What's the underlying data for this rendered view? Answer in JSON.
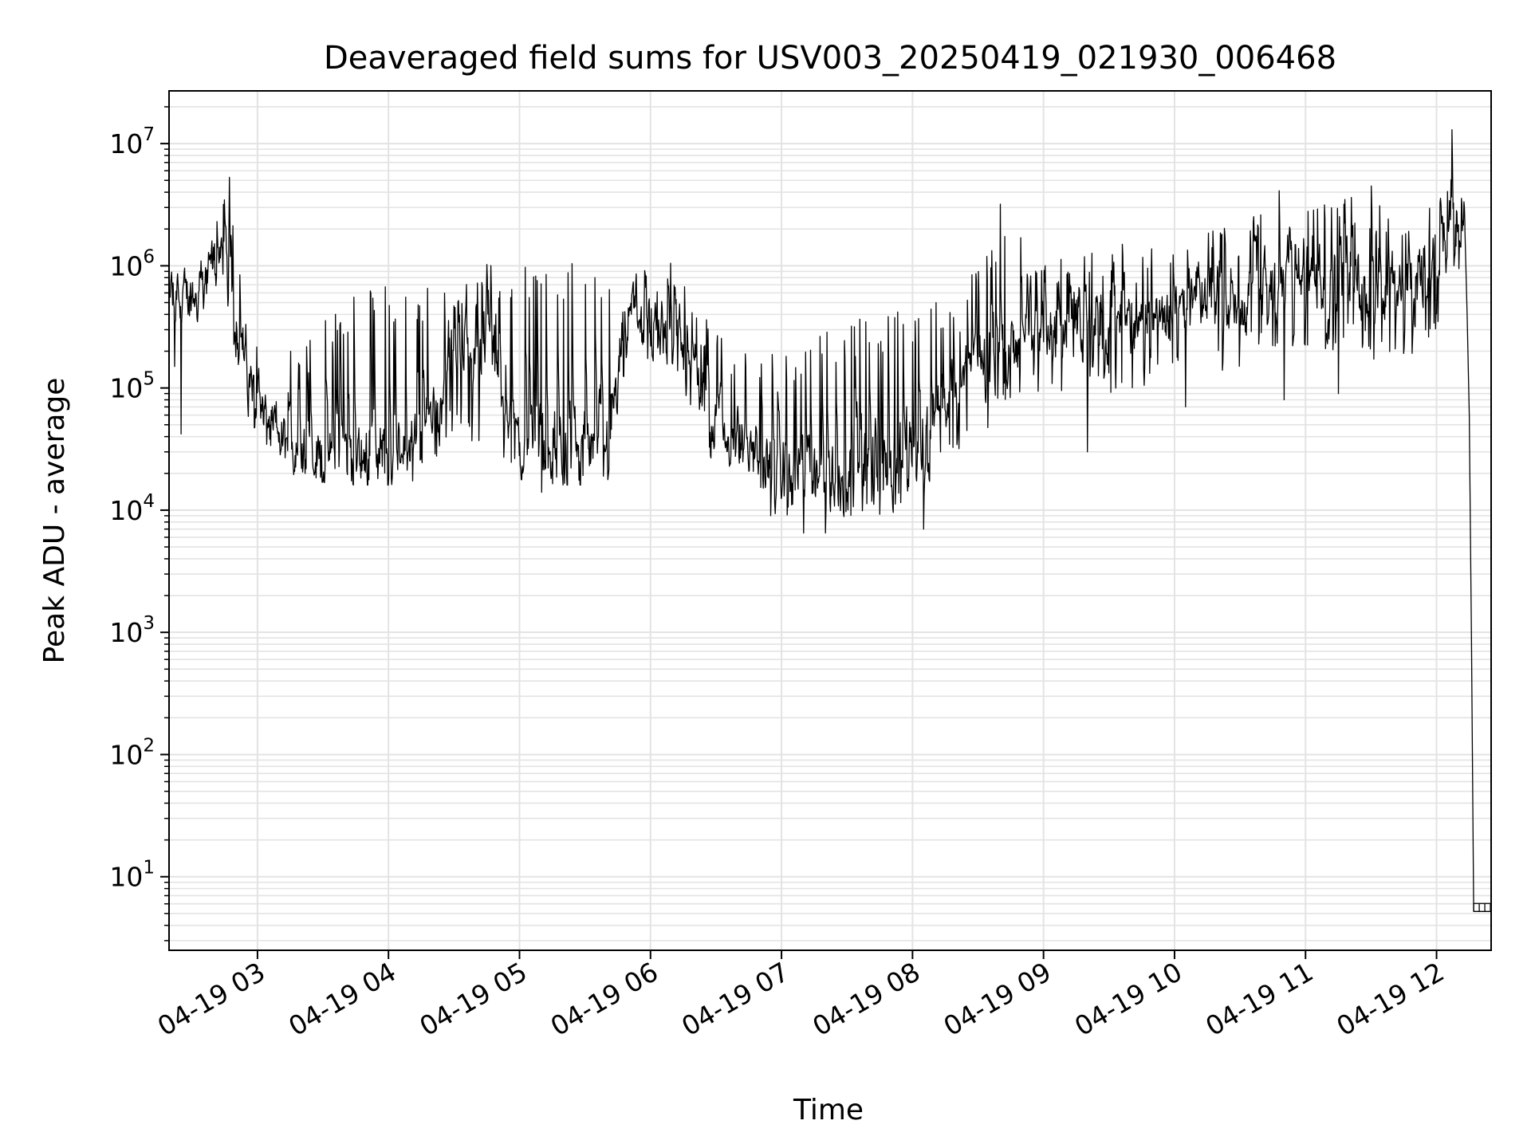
{
  "chart_data": {
    "type": "line",
    "title": "Deaveraged field sums for USV003_20250419_021930_006468",
    "xlabel": "Time",
    "ylabel": "Peak ADU - average",
    "y_scale": "log",
    "grid": true,
    "legend": "none",
    "line_color": "#000000",
    "grid_color": "#e3e3e3",
    "x_range": [
      "2025-04-19 02:19:30",
      "2025-04-19 12:25:00"
    ],
    "y_range": [
      2.5,
      27000000
    ],
    "x_ticks": [
      {
        "time": "2025-04-19 03:00",
        "label": "04-19 03"
      },
      {
        "time": "2025-04-19 04:00",
        "label": "04-19 04"
      },
      {
        "time": "2025-04-19 05:00",
        "label": "04-19 05"
      },
      {
        "time": "2025-04-19 06:00",
        "label": "04-19 06"
      },
      {
        "time": "2025-04-19 07:00",
        "label": "04-19 07"
      },
      {
        "time": "2025-04-19 08:00",
        "label": "04-19 08"
      },
      {
        "time": "2025-04-19 09:00",
        "label": "04-19 09"
      },
      {
        "time": "2025-04-19 10:00",
        "label": "04-19 10"
      },
      {
        "time": "2025-04-19 11:00",
        "label": "04-19 11"
      },
      {
        "time": "2025-04-19 12:00",
        "label": "04-19 12"
      }
    ],
    "y_ticks": [
      {
        "value": 10,
        "base": "10",
        "exp": "1"
      },
      {
        "value": 100,
        "base": "10",
        "exp": "2"
      },
      {
        "value": 1000,
        "base": "10",
        "exp": "3"
      },
      {
        "value": 10000,
        "base": "10",
        "exp": "4"
      },
      {
        "value": 100000,
        "base": "10",
        "exp": "5"
      },
      {
        "value": 1000000,
        "base": "10",
        "exp": "6"
      },
      {
        "value": 10000000,
        "base": "10",
        "exp": "7"
      }
    ],
    "series": [
      {
        "envelope": [
          {
            "t": "2025-04-19 02:20",
            "low": 400000,
            "high": 900000,
            "median": 600000
          },
          {
            "t": "2025-04-19 02:30",
            "low": 350000,
            "high": 1200000,
            "median": 550000
          },
          {
            "t": "2025-04-19 02:40",
            "low": 500000,
            "high": 2500000,
            "median": 1100000
          },
          {
            "t": "2025-04-19 02:47",
            "low": 300000,
            "high": 4500000,
            "median": 800000
          },
          {
            "t": "2025-04-19 02:55",
            "low": 60000,
            "high": 400000,
            "median": 150000
          },
          {
            "t": "2025-04-19 03:05",
            "low": 30000,
            "high": 200000,
            "median": 50000
          },
          {
            "t": "2025-04-19 03:20",
            "low": 20000,
            "high": 200000,
            "median": 28000
          },
          {
            "t": "2025-04-19 03:40",
            "low": 18000,
            "high": 600000,
            "median": 27000
          },
          {
            "t": "2025-04-19 04:00",
            "low": 18000,
            "high": 700000,
            "median": 28000
          },
          {
            "t": "2025-04-19 04:15",
            "low": 20000,
            "high": 600000,
            "median": 30000
          },
          {
            "t": "2025-04-19 04:30",
            "low": 40000,
            "high": 1000000,
            "median": 300000
          },
          {
            "t": "2025-04-19 04:45",
            "low": 25000,
            "high": 1100000,
            "median": 250000
          },
          {
            "t": "2025-04-19 05:00",
            "low": 20000,
            "high": 1100000,
            "median": 40000
          },
          {
            "t": "2025-04-19 05:20",
            "low": 18000,
            "high": 1100000,
            "median": 30000
          },
          {
            "t": "2025-04-19 05:40",
            "low": 18000,
            "high": 1100000,
            "median": 40000
          },
          {
            "t": "2025-04-19 05:50",
            "low": 150000,
            "high": 1100000,
            "median": 450000
          },
          {
            "t": "2025-04-19 06:10",
            "low": 120000,
            "high": 1100000,
            "median": 300000
          },
          {
            "t": "2025-04-19 06:30",
            "low": 25000,
            "high": 300000,
            "median": 50000
          },
          {
            "t": "2025-04-19 06:45",
            "low": 20000,
            "high": 250000,
            "median": 35000
          },
          {
            "t": "2025-04-19 07:00",
            "low": 9000,
            "high": 200000,
            "median": 20000
          },
          {
            "t": "2025-04-19 07:20",
            "low": 8000,
            "high": 300000,
            "median": 20000
          },
          {
            "t": "2025-04-19 07:40",
            "low": 8000,
            "high": 400000,
            "median": 20000
          },
          {
            "t": "2025-04-19 08:00",
            "low": 12000,
            "high": 500000,
            "median": 30000
          },
          {
            "t": "2025-04-19 08:20",
            "low": 25000,
            "high": 500000,
            "median": 100000
          },
          {
            "t": "2025-04-19 08:40",
            "low": 60000,
            "high": 2500000,
            "median": 250000
          },
          {
            "t": "2025-04-19 09:00",
            "low": 80000,
            "high": 1200000,
            "median": 300000
          },
          {
            "t": "2025-04-19 09:30",
            "low": 90000,
            "high": 1500000,
            "median": 400000
          },
          {
            "t": "2025-04-19 10:00",
            "low": 100000,
            "high": 1500000,
            "median": 450000
          },
          {
            "t": "2025-04-19 10:30",
            "low": 150000,
            "high": 2500000,
            "median": 600000
          },
          {
            "t": "2025-04-19 10:45",
            "low": 200000,
            "high": 4500000,
            "median": 1000000
          },
          {
            "t": "2025-04-19 11:00",
            "low": 150000,
            "high": 3000000,
            "median": 800000
          },
          {
            "t": "2025-04-19 11:20",
            "low": 200000,
            "high": 4000000,
            "median": 900000
          },
          {
            "t": "2025-04-19 11:40",
            "low": 150000,
            "high": 3000000,
            "median": 700000
          },
          {
            "t": "2025-04-19 12:00",
            "low": 250000,
            "high": 3000000,
            "median": 900000
          },
          {
            "t": "2025-04-19 12:08",
            "low": 600000,
            "high": 8000000,
            "median": 2000000
          },
          {
            "t": "2025-04-19 12:13",
            "low": 700000,
            "high": 6000000,
            "median": 2000000
          }
        ],
        "spikes": [
          {
            "t": "2025-04-19 02:22",
            "value": 150000
          },
          {
            "t": "2025-04-19 02:25",
            "value": 42000
          },
          {
            "t": "2025-04-19 02:47",
            "value": 5300000
          },
          {
            "t": "2025-04-19 05:10",
            "value": 14000
          },
          {
            "t": "2025-04-19 06:55",
            "value": 9000
          },
          {
            "t": "2025-04-19 07:10",
            "value": 6500
          },
          {
            "t": "2025-04-19 07:20",
            "value": 6500
          },
          {
            "t": "2025-04-19 08:05",
            "value": 7000
          },
          {
            "t": "2025-04-19 08:40",
            "value": 3200000
          },
          {
            "t": "2025-04-19 09:20",
            "value": 30000
          },
          {
            "t": "2025-04-19 10:05",
            "value": 70000
          },
          {
            "t": "2025-04-19 10:50",
            "value": 80000
          },
          {
            "t": "2025-04-19 11:15",
            "value": 90000
          },
          {
            "t": "2025-04-19 11:30",
            "value": 4500000
          },
          {
            "t": "2025-04-19 12:07",
            "value": 13000000
          }
        ],
        "drop": [
          {
            "t": "2025-04-19 12:13",
            "value": 2000000
          },
          {
            "t": "2025-04-19 12:14",
            "value": 400000
          },
          {
            "t": "2025-04-19 12:15",
            "value": 60000
          },
          {
            "t": "2025-04-19 12:16",
            "value": 800
          },
          {
            "t": "2025-04-19 12:17",
            "value": 5.2
          },
          {
            "t": "2025-04-19 12:25",
            "value": 5.2
          }
        ]
      }
    ]
  }
}
